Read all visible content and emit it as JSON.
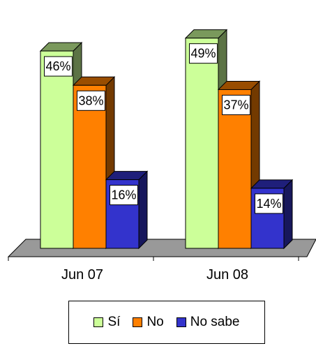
{
  "chart_data": {
    "type": "bar",
    "categories": [
      "Jun 07",
      "Jun 08"
    ],
    "series": [
      {
        "name": "Sí",
        "color": "#ccff99",
        "values": [
          46,
          49
        ],
        "labels": [
          "46%",
          "49%"
        ]
      },
      {
        "name": "No",
        "color": "#ff8000",
        "values": [
          38,
          37
        ],
        "labels": [
          "38%",
          "37%"
        ]
      },
      {
        "name": "No sabe",
        "color": "#3333cc",
        "values": [
          16,
          14
        ],
        "labels": [
          "16%",
          "14%"
        ]
      }
    ],
    "ylim": [
      0,
      50
    ],
    "grid": false,
    "legend": "bottom"
  }
}
